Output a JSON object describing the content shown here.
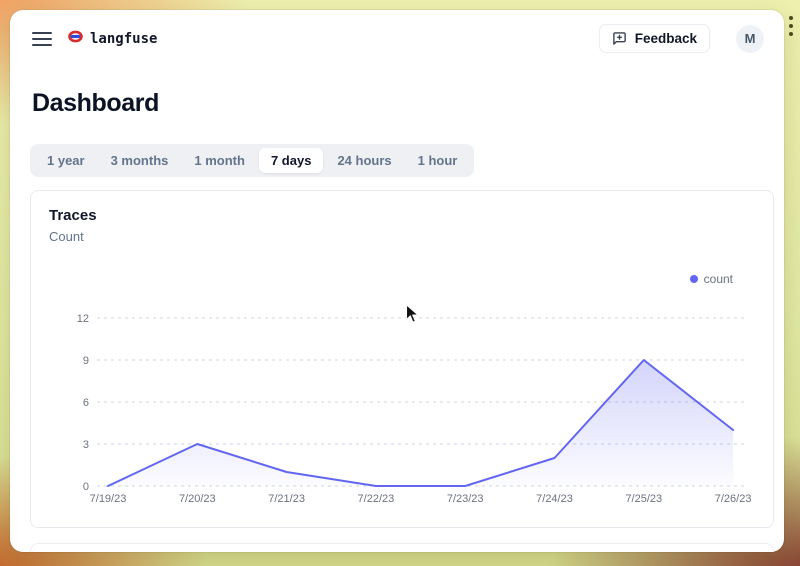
{
  "header": {
    "brand": "langfuse",
    "feedback_label": "Feedback",
    "avatar_initial": "M"
  },
  "page": {
    "title": "Dashboard"
  },
  "time_tabs": {
    "items": [
      "1 year",
      "3 months",
      "1 month",
      "7 days",
      "24 hours",
      "1 hour"
    ],
    "active": "7 days"
  },
  "traces_card": {
    "title": "Traces",
    "subtitle": "Count"
  },
  "chart_data": {
    "type": "area",
    "title": "Traces",
    "ylabel": "Count",
    "x": [
      "7/19/23",
      "7/20/23",
      "7/21/23",
      "7/22/23",
      "7/23/23",
      "7/24/23",
      "7/25/23",
      "7/26/23"
    ],
    "series": [
      {
        "name": "count",
        "values": [
          0,
          3,
          1,
          0,
          0,
          2,
          9,
          4
        ]
      }
    ],
    "ylim": [
      0,
      12
    ],
    "yticks": [
      0,
      3,
      6,
      9,
      12
    ],
    "grid": "horizontal-dashed",
    "legend": {
      "position": "top-right",
      "entries": [
        "count"
      ]
    },
    "colors": {
      "line": "#6366f1",
      "fill_top": "rgba(99,102,241,0.28)",
      "fill_bottom": "rgba(99,102,241,0.02)",
      "gridline": "#cbd5e1",
      "tick_text": "#6b7280"
    }
  },
  "theme": {
    "accent": "#6366f1",
    "frame_top_left": "#f09a5c",
    "frame_body": "#e0e9a3",
    "frame_bottom_left": "#c2541d",
    "frame_bottom_right": "#77211f"
  }
}
